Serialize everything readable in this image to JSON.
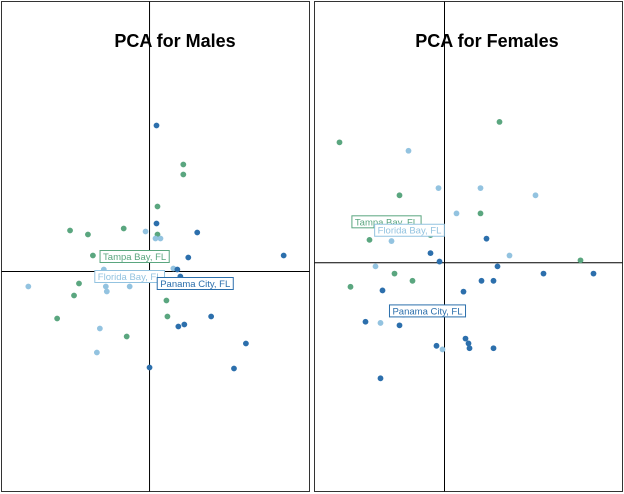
{
  "colors": {
    "tampa_bay": "#5aa67f",
    "florida_bay": "#93c3e0",
    "panama_city": "#2c6fac"
  },
  "chart_data": [
    {
      "type": "scatter",
      "title": "PCA for Males",
      "xlim": [
        -1.49,
        1.61
      ],
      "ylim": [
        -2.2,
        2.7
      ],
      "grid": false,
      "legend": "none",
      "series": [
        {
          "group": "tampa_bay",
          "points": [
            [
              0.34,
              1.07
            ],
            [
              0.34,
              0.97
            ],
            [
              0.08,
              0.65
            ],
            [
              -0.26,
              0.43
            ],
            [
              -0.8,
              0.41
            ],
            [
              -0.62,
              0.37
            ],
            [
              0.08,
              0.37
            ],
            [
              -0.57,
              0.16
            ],
            [
              -0.2,
              0.16
            ],
            [
              -0.71,
              -0.12
            ],
            [
              -0.76,
              -0.24
            ],
            [
              0.17,
              -0.29
            ],
            [
              0.18,
              -0.45
            ],
            [
              -0.93,
              -0.47
            ],
            [
              -0.23,
              -0.65
            ]
          ]
        },
        {
          "group": "florida_bay",
          "points": [
            [
              -0.04,
              0.4
            ],
            [
              0.06,
              0.33
            ],
            [
              0.11,
              0.33
            ],
            [
              -0.36,
              0.14
            ],
            [
              -0.15,
              0.13
            ],
            [
              -0.01,
              0.12
            ],
            [
              -0.46,
              0.02
            ],
            [
              0.24,
              0.03
            ],
            [
              -1.22,
              -0.15
            ],
            [
              -0.44,
              -0.15
            ],
            [
              -0.2,
              -0.15
            ],
            [
              -0.43,
              -0.2
            ],
            [
              -0.5,
              -0.57
            ],
            [
              -0.53,
              -0.81
            ]
          ]
        },
        {
          "group": "panama_city",
          "points": [
            [
              0.07,
              1.46
            ],
            [
              0.07,
              0.48
            ],
            [
              0.48,
              0.39
            ],
            [
              1.35,
              0.16
            ],
            [
              0.39,
              0.14
            ],
            [
              0.28,
              0.02
            ],
            [
              0.31,
              -0.05
            ],
            [
              0.62,
              -0.45
            ],
            [
              0.35,
              -0.53
            ],
            [
              0.29,
              -0.55
            ],
            [
              0.97,
              -0.72
            ],
            [
              0.0,
              -0.96
            ],
            [
              0.85,
              -0.97
            ]
          ]
        }
      ],
      "labels": [
        {
          "group": "tampa_bay",
          "text": "Tampa Bay, FL",
          "x": -0.15,
          "y": 0.15
        },
        {
          "group": "florida_bay",
          "text": "Florida Bay, FL",
          "x": -0.2,
          "y": -0.05
        },
        {
          "group": "panama_city",
          "text": "Panama City, FL",
          "x": 0.46,
          "y": -0.12
        }
      ]
    },
    {
      "type": "scatter",
      "title": "PCA for Females",
      "xlim": [
        -1.3,
        1.78
      ],
      "ylim": [
        -1.9,
        2.17
      ],
      "grid": false,
      "legend": "none",
      "series": [
        {
          "group": "tampa_bay",
          "points": [
            [
              0.55,
              1.17
            ],
            [
              -1.05,
              1.0
            ],
            [
              -0.45,
              0.56
            ],
            [
              0.36,
              0.41
            ],
            [
              -0.85,
              0.32
            ],
            [
              -0.75,
              0.19
            ],
            [
              -0.14,
              0.23
            ],
            [
              1.36,
              0.02
            ],
            [
              -0.5,
              -0.09
            ],
            [
              -0.32,
              -0.15
            ],
            [
              -0.94,
              -0.2
            ]
          ]
        },
        {
          "group": "florida_bay",
          "points": [
            [
              -0.36,
              0.93
            ],
            [
              -0.06,
              0.62
            ],
            [
              0.36,
              0.62
            ],
            [
              0.91,
              0.56
            ],
            [
              0.12,
              0.41
            ],
            [
              -0.53,
              0.18
            ],
            [
              -0.69,
              -0.03
            ],
            [
              0.65,
              0.06
            ],
            [
              -0.64,
              -0.5
            ],
            [
              -0.02,
              -0.72
            ]
          ]
        },
        {
          "group": "panama_city",
          "points": [
            [
              0.42,
              0.2
            ],
            [
              -0.14,
              0.08
            ],
            [
              -0.05,
              0.01
            ],
            [
              0.53,
              -0.03
            ],
            [
              0.99,
              -0.09
            ],
            [
              1.49,
              -0.09
            ],
            [
              0.37,
              -0.15
            ],
            [
              0.49,
              -0.15
            ],
            [
              -0.62,
              -0.23
            ],
            [
              0.19,
              -0.24
            ],
            [
              -0.41,
              -0.43
            ],
            [
              -0.79,
              -0.49
            ],
            [
              -0.45,
              -0.52
            ],
            [
              0.21,
              -0.63
            ],
            [
              0.24,
              -0.67
            ],
            [
              0.49,
              -0.71
            ],
            [
              0.25,
              -0.71
            ],
            [
              -0.08,
              -0.69
            ],
            [
              -0.64,
              -0.96
            ]
          ]
        }
      ],
      "labels": [
        {
          "group": "tampa_bay",
          "text": "Tampa Bay, FL",
          "x": -0.58,
          "y": 0.34
        },
        {
          "group": "florida_bay",
          "text": "Florida Bay, FL",
          "x": -0.35,
          "y": 0.27
        },
        {
          "group": "panama_city",
          "text": "Panama City, FL",
          "x": -0.17,
          "y": -0.4
        }
      ]
    }
  ]
}
